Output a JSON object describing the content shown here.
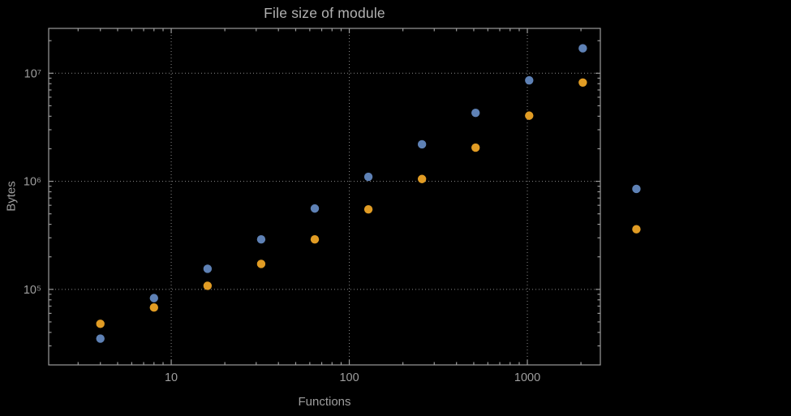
{
  "colors": {
    "background": "#000000",
    "frame": "#9b9b9b",
    "grid": "#8a8a8a",
    "text": "#9e9e9e",
    "title": "#b2b2b2",
    "series_blue": "#5e81b5",
    "series_orange": "#e19c24"
  },
  "chart_data": {
    "type": "scatter",
    "title": "File size of module",
    "xlabel": "Functions",
    "ylabel": "Bytes",
    "xscale": "log",
    "yscale": "log",
    "xlim": [
      2.05,
      2570
    ],
    "ylim": [
      20000,
      26000000
    ],
    "grid": "dotted-at-major-ticks",
    "legend": "none",
    "x_ticks": {
      "values": [
        10,
        100,
        1000
      ],
      "labels": [
        "10",
        "100",
        "1000"
      ]
    },
    "y_ticks": {
      "values": [
        100000,
        1000000,
        10000000
      ],
      "labels": [
        "10⁵",
        "10⁶",
        "10⁷"
      ]
    },
    "series": [
      {
        "name": "series-1-blue",
        "color": "#5e81b5",
        "x": [
          4,
          8,
          16,
          32,
          64,
          128,
          256,
          512,
          1024,
          2048,
          4096
        ],
        "y": [
          35000,
          83000,
          155000,
          290000,
          560000,
          1100000,
          2200000,
          4300000,
          8600000,
          17000000,
          850000
        ]
      },
      {
        "name": "series-2-orange",
        "color": "#e19c24",
        "x": [
          4,
          8,
          16,
          32,
          64,
          128,
          256,
          512,
          1024,
          2048,
          4096
        ],
        "y": [
          48000,
          68000,
          108000,
          172000,
          290000,
          550000,
          1050000,
          2050000,
          4050000,
          8200000,
          360000
        ]
      }
    ]
  }
}
